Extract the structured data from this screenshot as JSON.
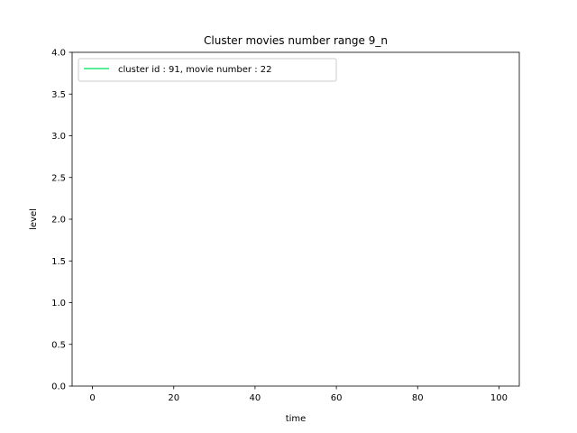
{
  "chart_data": {
    "type": "line",
    "title": "Cluster movies number range 9_n",
    "xlabel": "time",
    "ylabel": "level",
    "xlim": [
      -5,
      105
    ],
    "ylim": [
      0.0,
      4.0
    ],
    "xticks": [
      0,
      20,
      40,
      60,
      80,
      100
    ],
    "xtick_labels": [
      "0",
      "20",
      "40",
      "60",
      "80",
      "100"
    ],
    "yticks": [
      0.0,
      0.5,
      1.0,
      1.5,
      2.0,
      2.5,
      3.0,
      3.5,
      4.0
    ],
    "ytick_labels": [
      "0.0",
      "0.5",
      "1.0",
      "1.5",
      "2.0",
      "2.5",
      "3.0",
      "3.5",
      "4.0"
    ],
    "grid": false,
    "legend_position": "top-left",
    "series": [
      {
        "name": "cluster id : 91, movie number : 22",
        "color": "#1fe87a",
        "x": [],
        "y": []
      }
    ]
  }
}
